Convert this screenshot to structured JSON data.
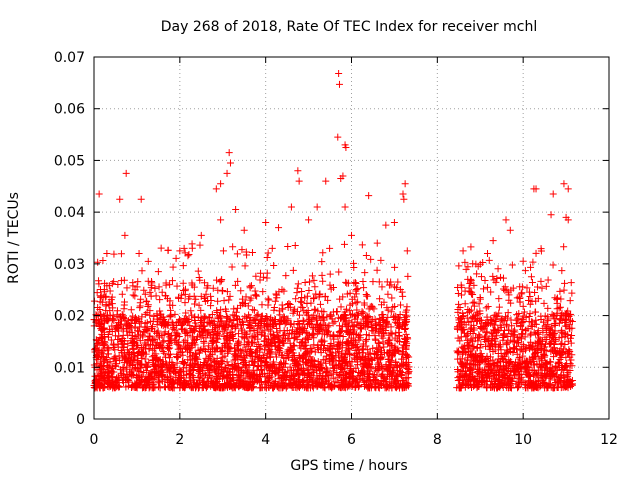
{
  "chart_data": {
    "type": "scatter",
    "title": "Day 268 of 2018, Rate Of TEC Index for receiver mchl",
    "xlabel": "GPS time / hours",
    "ylabel": "ROTI / TECUs",
    "xlim": [
      0,
      12
    ],
    "ylim": [
      0,
      0.07
    ],
    "x_ticks": [
      0,
      2,
      4,
      6,
      8,
      10,
      12
    ],
    "x_tick_labels": [
      "0",
      "2",
      "4",
      "6",
      "8",
      "10",
      "12"
    ],
    "y_ticks": [
      0,
      0.01,
      0.02,
      0.03,
      0.04,
      0.05,
      0.06,
      0.07
    ],
    "y_tick_labels": [
      "0",
      "0.01",
      "0.02",
      "0.03",
      "0.04",
      "0.05",
      "0.06",
      "0.07"
    ],
    "grid": true,
    "marker": "+",
    "marker_color": "#ff0000",
    "series": [
      {
        "name": "ROTI",
        "segments": [
          {
            "x_start": 0.0,
            "x_end": 7.35
          },
          {
            "x_start": 8.45,
            "x_end": 11.15
          }
        ],
        "notable_points": [
          [
            0.12,
            0.0435
          ],
          [
            0.3,
            0.032
          ],
          [
            0.6,
            0.0425
          ],
          [
            0.75,
            0.0475
          ],
          [
            0.72,
            0.0355
          ],
          [
            1.1,
            0.0425
          ],
          [
            1.05,
            0.032
          ],
          [
            1.5,
            0.0285
          ],
          [
            2.0,
            0.0325
          ],
          [
            2.1,
            0.033
          ],
          [
            2.5,
            0.0355
          ],
          [
            2.85,
            0.0445
          ],
          [
            2.95,
            0.0455
          ],
          [
            2.95,
            0.0385
          ],
          [
            3.15,
            0.0515
          ],
          [
            3.18,
            0.0495
          ],
          [
            3.1,
            0.0475
          ],
          [
            3.3,
            0.0405
          ],
          [
            3.5,
            0.0365
          ],
          [
            4.0,
            0.038
          ],
          [
            4.3,
            0.037
          ],
          [
            4.6,
            0.041
          ],
          [
            4.75,
            0.048
          ],
          [
            4.78,
            0.046
          ],
          [
            5.0,
            0.0385
          ],
          [
            5.2,
            0.041
          ],
          [
            5.4,
            0.046
          ],
          [
            5.7,
            0.0668
          ],
          [
            5.72,
            0.0647
          ],
          [
            5.68,
            0.0545
          ],
          [
            5.85,
            0.053
          ],
          [
            5.87,
            0.0525
          ],
          [
            5.8,
            0.047
          ],
          [
            5.75,
            0.0465
          ],
          [
            5.85,
            0.041
          ],
          [
            6.0,
            0.0355
          ],
          [
            6.4,
            0.0432
          ],
          [
            6.6,
            0.034
          ],
          [
            6.8,
            0.0375
          ],
          [
            7.0,
            0.038
          ],
          [
            7.2,
            0.0435
          ],
          [
            7.25,
            0.0455
          ],
          [
            7.22,
            0.0425
          ],
          [
            7.3,
            0.0325
          ],
          [
            8.6,
            0.0325
          ],
          [
            9.3,
            0.0345
          ],
          [
            9.6,
            0.0385
          ],
          [
            9.7,
            0.0365
          ],
          [
            10.0,
            0.0305
          ],
          [
            10.25,
            0.0445
          ],
          [
            10.3,
            0.0445
          ],
          [
            10.7,
            0.0435
          ],
          [
            10.65,
            0.0395
          ],
          [
            10.95,
            0.0455
          ],
          [
            11.05,
            0.0445
          ],
          [
            11.0,
            0.039
          ],
          [
            11.05,
            0.0385
          ]
        ],
        "baseline_range": [
          0.003,
          0.022
        ],
        "typical_value": 0.01
      }
    ]
  }
}
